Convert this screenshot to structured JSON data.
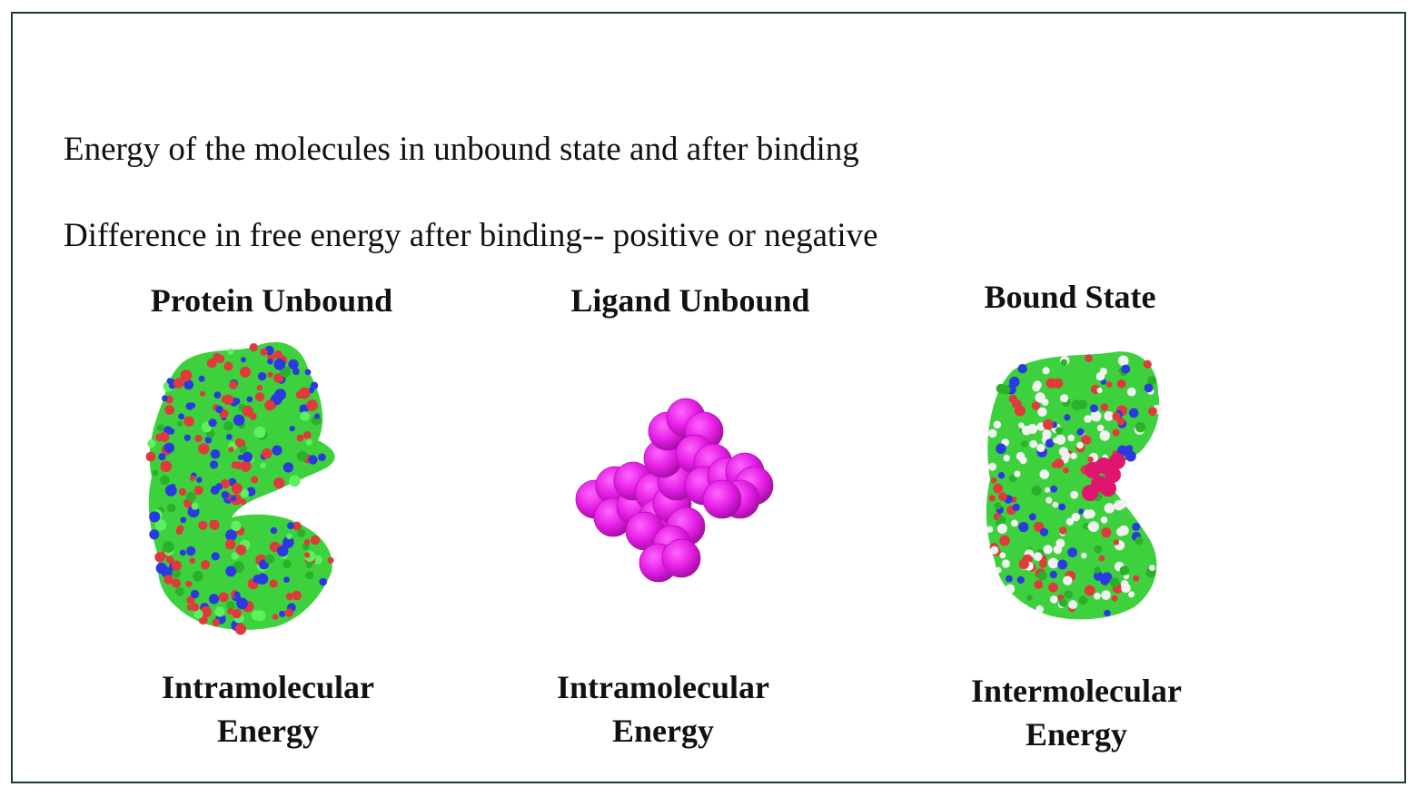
{
  "text": {
    "line1": "Energy of the molecules in unbound state  and after binding",
    "line2": "Difference in free energy after binding-- positive or negative"
  },
  "panels": {
    "protein": {
      "title": "Protein Unbound",
      "caption1": "Intramolecular",
      "caption2": "Energy"
    },
    "ligand": {
      "title": "Ligand Unbound",
      "caption1": "Intramolecular",
      "caption2": "Energy"
    },
    "bound": {
      "title": "Bound State",
      "caption1": "Intermolecular",
      "caption2": "Energy"
    }
  },
  "colors": {
    "frame": "#1f3a36",
    "carbon": "#3ed13e",
    "oxygen": "#e03a3a",
    "nitrogen": "#2a3ae0",
    "sulfur": "#e8c23a",
    "ligand": "#e51ee5",
    "ligand_bound": "#e0156f",
    "hydrogen_white": "#f2f2f2"
  }
}
